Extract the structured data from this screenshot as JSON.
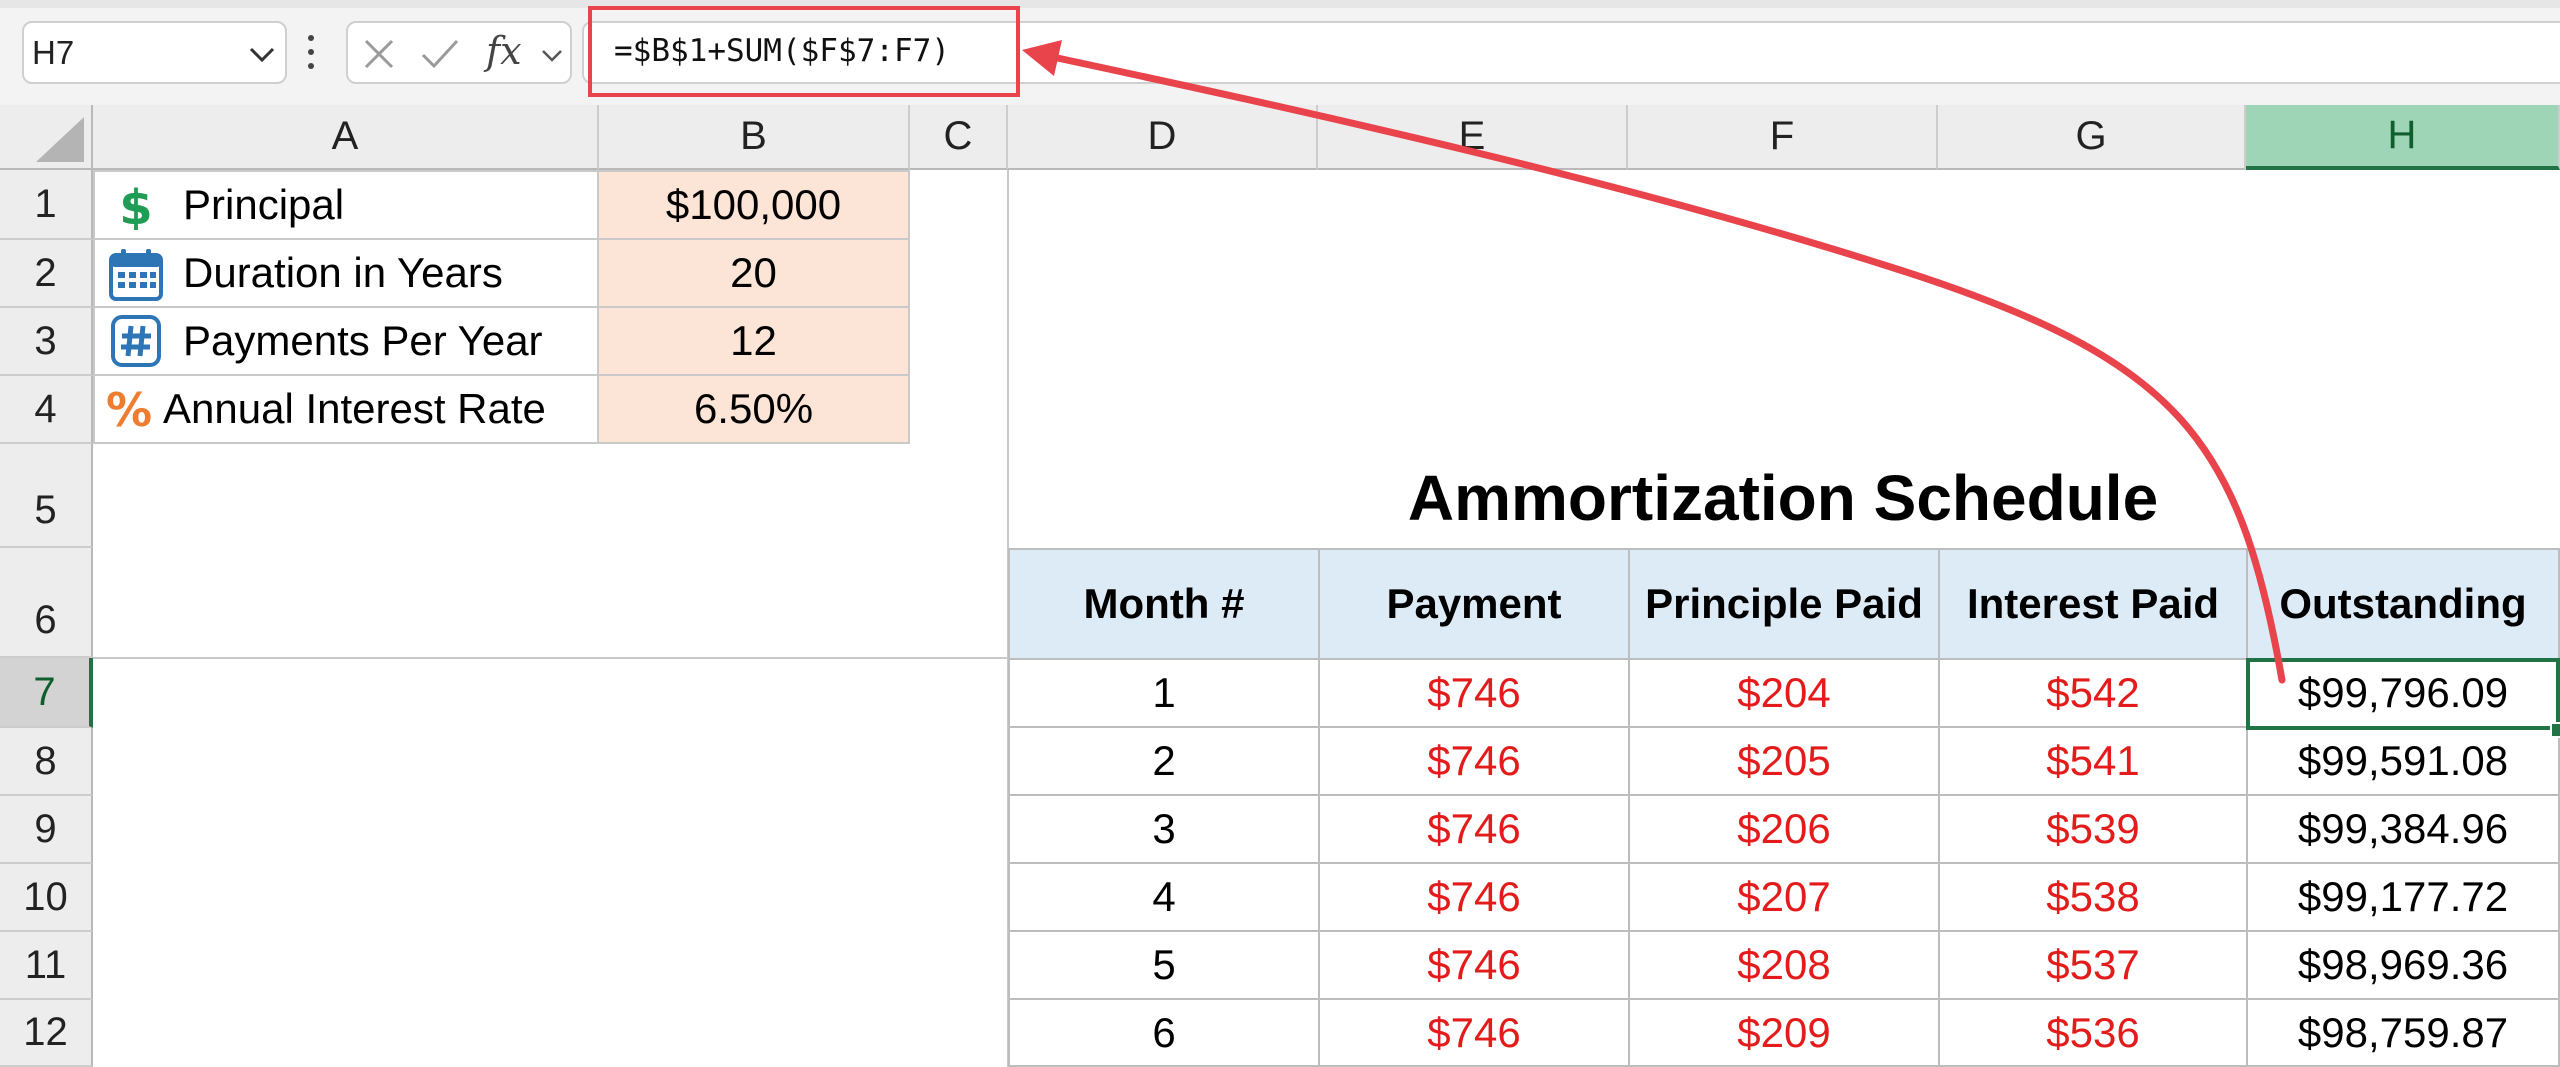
{
  "formula_bar": {
    "name_box": "H7",
    "fx": "fx",
    "formula": "=$B$1+SUM($F$7:F7)"
  },
  "columns": [
    "A",
    "B",
    "C",
    "D",
    "E",
    "F",
    "G",
    "H"
  ],
  "rows": [
    "1",
    "2",
    "3",
    "4",
    "5",
    "6",
    "7",
    "8",
    "9",
    "10",
    "11",
    "12"
  ],
  "selected": {
    "column": "H",
    "row": "7"
  },
  "parameters": [
    {
      "label": "Principal",
      "value": "$100,000",
      "icon": "dollar-icon",
      "icon_color": "#1f9d55"
    },
    {
      "label": "Duration in Years",
      "value": "20",
      "icon": "calendar-icon",
      "icon_color": "#2e75b6"
    },
    {
      "label": "Payments Per Year",
      "value": "12",
      "icon": "hash-icon",
      "icon_color": "#2e75b6"
    },
    {
      "label": "Annual Interest Rate",
      "value": "6.50%",
      "icon": "percent-icon",
      "icon_color": "#ed7d31"
    }
  ],
  "schedule": {
    "title": "Ammortization Schedule",
    "headers": [
      "Month #",
      "Payment",
      "Principle Paid",
      "Interest Paid",
      "Outstanding"
    ],
    "rows": [
      [
        "1",
        "$746",
        "$204",
        "$542",
        "$99,796.09"
      ],
      [
        "2",
        "$746",
        "$205",
        "$541",
        "$99,591.08"
      ],
      [
        "3",
        "$746",
        "$206",
        "$539",
        "$99,384.96"
      ],
      [
        "4",
        "$746",
        "$207",
        "$538",
        "$99,177.72"
      ],
      [
        "5",
        "$746",
        "$208",
        "$537",
        "$98,969.36"
      ],
      [
        "6",
        "$746",
        "$209",
        "$536",
        "$98,759.87"
      ]
    ]
  },
  "colors": {
    "header_fill": "#ddebf7",
    "param_fill": "#fce4d6",
    "negative_text": "#e31b1b",
    "selection": "#217346",
    "annotation": "#e9434b"
  }
}
